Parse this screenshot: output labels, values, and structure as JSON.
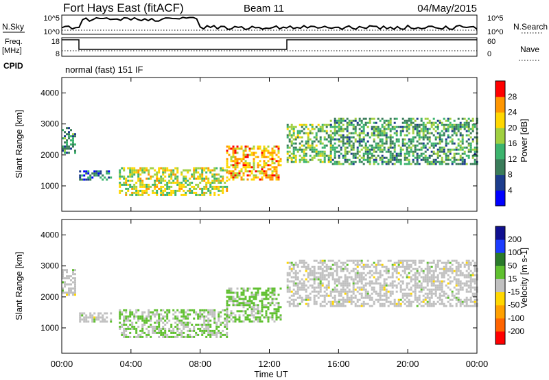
{
  "header": {
    "title": "Fort Hays East (fitACF)",
    "beam": "Beam 11",
    "date": "04/May/2015"
  },
  "status_panels": {
    "nsky_label": "N.Sky",
    "nsearch_label": "N.Search",
    "noise_ticks": [
      "10^5",
      "10^0"
    ],
    "freq_label": "Freq.",
    "freq_unit": "[MHz]",
    "freq_ticks": [
      "18",
      "8"
    ],
    "nave_label": "Nave",
    "nave_ticks": [
      "60",
      "0"
    ],
    "cpid_label": "CPID",
    "cpid_value": "normal (fast) 151 IF"
  },
  "chart_data": [
    {
      "type": "heatmap",
      "name": "power",
      "ylabel": "Slant Range [km]",
      "xlabel": "Time UT",
      "xlim_hours": [
        0,
        24
      ],
      "ylim": [
        180,
        4500
      ],
      "yticks": [
        "1000",
        "2000",
        "3000",
        "4000"
      ],
      "xticks": [
        "00:00",
        "04:00",
        "08:00",
        "12:00",
        "16:00",
        "20:00",
        "00:00"
      ],
      "colorbar": {
        "label": "Power [dB]",
        "ticks": [
          "28",
          "24",
          "20",
          "16",
          "12",
          "8",
          "4"
        ],
        "range": [
          0,
          30
        ],
        "colors": [
          "#0000ff",
          "#1c3c8c",
          "#3a7c5a",
          "#3cb46e",
          "#a0d040",
          "#ffd700",
          "#ff9600",
          "#ff0000"
        ]
      },
      "features": [
        {
          "label": "echo band 00:00-00:50",
          "t": [
            0.0,
            0.8
          ],
          "range": [
            2100,
            2900
          ],
          "level": 10
        },
        {
          "label": "echo band 01:00-02:50",
          "t": [
            1.0,
            2.8
          ],
          "range": [
            1200,
            1500
          ],
          "level": 8
        },
        {
          "label": "echo band 03:20-09:30",
          "t": [
            3.3,
            9.5
          ],
          "range": [
            700,
            1600
          ],
          "level": 18
        },
        {
          "label": "echo arc 09:30-12:40",
          "t": [
            9.5,
            12.7
          ],
          "range": [
            1200,
            2300
          ],
          "level": 22
        },
        {
          "label": "echo band 13:00-15:30",
          "t": [
            13.0,
            15.5
          ],
          "range": [
            1800,
            3000
          ],
          "level": 14
        },
        {
          "label": "echo band 15:30-24:00",
          "t": [
            15.5,
            24.0
          ],
          "range": [
            1700,
            3200
          ],
          "level": 12
        }
      ]
    },
    {
      "type": "heatmap",
      "name": "velocity",
      "ylabel": "Slant Range [km]",
      "xlabel": "Time UT",
      "xlim_hours": [
        0,
        24
      ],
      "ylim": [
        180,
        4500
      ],
      "yticks": [
        "1000",
        "2000",
        "3000",
        "4000"
      ],
      "xticks": [
        "00:00",
        "04:00",
        "08:00",
        "12:00",
        "16:00",
        "20:00",
        "00:00"
      ],
      "colorbar": {
        "label": "Velocity [m s-1]",
        "ticks": [
          "200",
          "100",
          "50",
          "15",
          "-15",
          "-50",
          "-100",
          "-200"
        ],
        "range": [
          -250,
          250
        ],
        "colors": [
          "#ff0000",
          "#ff6400",
          "#ffa000",
          "#ffd700",
          "#c0c0c0",
          "#60c030",
          "#2a7a2a",
          "#1c3cff",
          "#101090"
        ]
      },
      "features": [
        {
          "label": "velocity band 00:00-00:50",
          "t": [
            0.0,
            0.8
          ],
          "range": [
            2100,
            2900
          ],
          "velocity": 0
        },
        {
          "label": "velocity band 01:00-02:50",
          "t": [
            1.0,
            2.8
          ],
          "range": [
            1200,
            1500
          ],
          "velocity": 0
        },
        {
          "label": "velocity band 03:20-09:30",
          "t": [
            3.3,
            9.5
          ],
          "range": [
            700,
            1600
          ],
          "velocity": 30
        },
        {
          "label": "velocity arc 09:30-12:40",
          "t": [
            9.5,
            12.7
          ],
          "range": [
            1200,
            2300
          ],
          "velocity": 40
        },
        {
          "label": "velocity band 13:00-24:00",
          "t": [
            13.0,
            24.0
          ],
          "range": [
            1700,
            3200
          ],
          "velocity": 0
        }
      ]
    }
  ]
}
